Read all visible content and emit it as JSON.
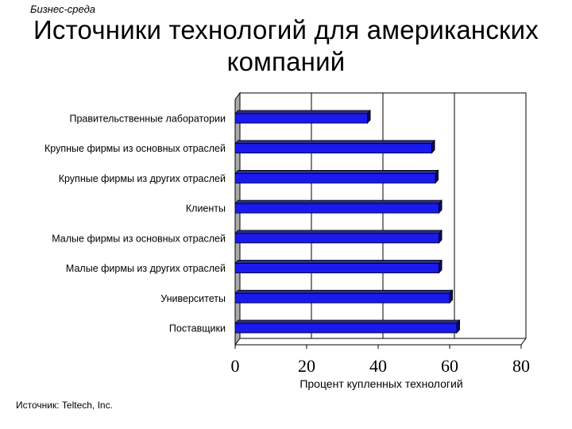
{
  "header": {
    "section": "Бизнес-среда",
    "title_line1": "Источники технологий для американских",
    "title_line2": "компаний"
  },
  "footer": {
    "source": "Источник: Teltech, Inc."
  },
  "colors": {
    "bar_front": "#1a1aee",
    "bar_top": "#2c2c92",
    "bar_side": "#0a0a6a",
    "wall": "#ffffff",
    "wall_side": "#a9a9a9"
  },
  "chart_data": {
    "type": "bar",
    "orientation": "horizontal",
    "style": "3d",
    "categories": [
      "Правительственные лаборатории",
      "Крупные фирмы из основных отраслей",
      "Крупные фирмы из других отраслей",
      "Клиенты",
      "Малые фирмы из основных отраслей",
      "Малые фирмы из других отраслей",
      "Университеты",
      "Поставщики"
    ],
    "values": [
      37,
      55,
      56,
      57,
      57,
      57,
      60,
      62
    ],
    "xlabel": "Процент купленных технологий",
    "ylabel": "",
    "xlim": [
      0,
      80
    ],
    "xticks": [
      "0",
      "20",
      "40",
      "60",
      "80"
    ],
    "grid": true,
    "legend": "none"
  }
}
